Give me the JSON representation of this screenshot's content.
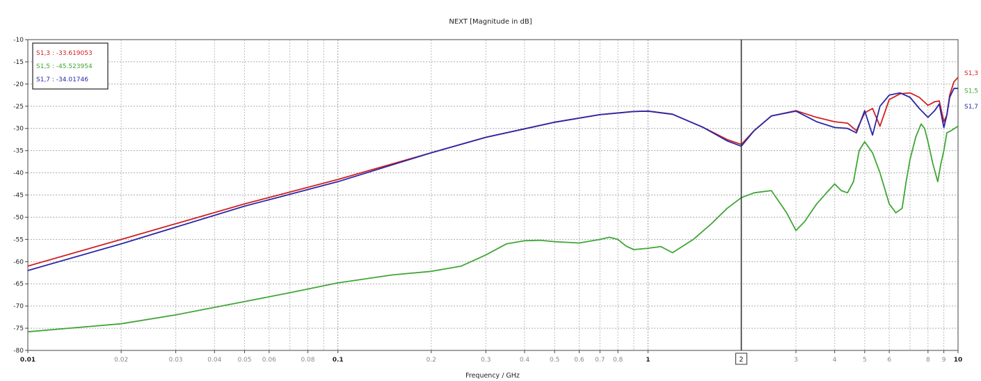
{
  "chart_data": {
    "type": "line",
    "title": "NEXT [Magnitude in dB]",
    "xlabel": "Frequency / GHz",
    "ylabel": "",
    "x_scale": "log",
    "xlim": [
      0.01,
      10
    ],
    "ylim": [
      -80,
      -10
    ],
    "grid": true,
    "legend_position": "top-left",
    "marker": {
      "x": 2,
      "label": "2"
    },
    "yticks": [
      -10,
      -15,
      -20,
      -25,
      -30,
      -35,
      -40,
      -45,
      -50,
      -55,
      -60,
      -65,
      -70,
      -75,
      -80
    ],
    "xticks": [
      {
        "value": 0.01,
        "label": "0.01",
        "major": true
      },
      {
        "value": 0.02,
        "label": "0.02",
        "major": false
      },
      {
        "value": 0.03,
        "label": "0.03",
        "major": false
      },
      {
        "value": 0.04,
        "label": "0.04",
        "major": false
      },
      {
        "value": 0.05,
        "label": "0.05",
        "major": false
      },
      {
        "value": 0.06,
        "label": "0.06",
        "major": false
      },
      {
        "value": 0.08,
        "label": "0.08",
        "major": false
      },
      {
        "value": 0.1,
        "label": "0.1",
        "major": true
      },
      {
        "value": 0.2,
        "label": "0.2",
        "major": false
      },
      {
        "value": 0.3,
        "label": "0.3",
        "major": false
      },
      {
        "value": 0.4,
        "label": "0.4",
        "major": false
      },
      {
        "value": 0.5,
        "label": "0.5",
        "major": false
      },
      {
        "value": 0.6,
        "label": "0.6",
        "major": false
      },
      {
        "value": 0.7,
        "label": "0.7",
        "major": false
      },
      {
        "value": 0.8,
        "label": "0.8",
        "major": false
      },
      {
        "value": 1,
        "label": "1",
        "major": true
      },
      {
        "value": 3,
        "label": "3",
        "major": false
      },
      {
        "value": 4,
        "label": "4",
        "major": false
      },
      {
        "value": 5,
        "label": "5",
        "major": false
      },
      {
        "value": 6,
        "label": "6",
        "major": false
      },
      {
        "value": 8,
        "label": "8",
        "major": false
      },
      {
        "value": 9,
        "label": "9",
        "major": false
      },
      {
        "value": 10,
        "label": "10",
        "major": true
      }
    ],
    "legend": [
      {
        "text": "S1,3 : -33.619053",
        "color": "#d21e1e"
      },
      {
        "text": "S1,5 : -45.523954",
        "color": "#3fa535"
      },
      {
        "text": "S1,7 : -34.01746",
        "color": "#2828a8"
      }
    ],
    "end_labels": [
      {
        "text": "S1,3",
        "color": "#d21e1e",
        "y": -17.5
      },
      {
        "text": "S1,5",
        "color": "#3fa535",
        "y": -21.5
      },
      {
        "text": "S1,7",
        "color": "#2828a8",
        "y": -25
      }
    ],
    "series": [
      {
        "name": "S1,3",
        "color": "#d21e1e",
        "x": [
          0.01,
          0.02,
          0.05,
          0.1,
          0.2,
          0.3,
          0.5,
          0.7,
          0.9,
          1.0,
          1.2,
          1.5,
          1.8,
          2.0,
          2.2,
          2.5,
          3.0,
          3.5,
          4.0,
          4.4,
          4.7,
          5.0,
          5.3,
          5.6,
          6.0,
          6.5,
          7.0,
          7.5,
          8.0,
          8.4,
          8.7,
          9.0,
          9.2,
          9.4,
          9.7,
          10.0
        ],
        "y": [
          -61,
          -55,
          -47,
          -41.5,
          -35.5,
          -32,
          -28.6,
          -26.9,
          -26.2,
          -26.1,
          -26.8,
          -29.7,
          -32.5,
          -33.6,
          -30.5,
          -27.2,
          -26,
          -27.5,
          -28.5,
          -28.8,
          -30.5,
          -26.5,
          -25.5,
          -29.5,
          -23.5,
          -22.2,
          -22,
          -23,
          -24.8,
          -24,
          -23.8,
          -28.5,
          -27,
          -22.5,
          -19.5,
          -18.5
        ]
      },
      {
        "name": "S1,5",
        "color": "#3fa535",
        "x": [
          0.01,
          0.02,
          0.03,
          0.05,
          0.07,
          0.1,
          0.15,
          0.2,
          0.25,
          0.3,
          0.35,
          0.4,
          0.45,
          0.5,
          0.6,
          0.7,
          0.75,
          0.8,
          0.85,
          0.9,
          1.0,
          1.1,
          1.2,
          1.4,
          1.6,
          1.8,
          2.0,
          2.2,
          2.5,
          2.8,
          3.0,
          3.2,
          3.5,
          3.8,
          4.0,
          4.2,
          4.4,
          4.6,
          4.8,
          5.0,
          5.3,
          5.6,
          6.0,
          6.3,
          6.6,
          6.8,
          7.0,
          7.3,
          7.6,
          7.8,
          8.0,
          8.3,
          8.6,
          8.8,
          9.0,
          9.2,
          9.5,
          10.0
        ],
        "y": [
          -75.8,
          -74,
          -72,
          -69,
          -67,
          -64.8,
          -63,
          -62.2,
          -61,
          -58.5,
          -56,
          -55.3,
          -55.2,
          -55.5,
          -55.8,
          -55,
          -54.5,
          -55,
          -56.5,
          -57.3,
          -57,
          -56.6,
          -58,
          -55,
          -51.5,
          -48,
          -45.6,
          -44.5,
          -44,
          -49,
          -53,
          -51,
          -47,
          -44.2,
          -42.5,
          -44,
          -44.5,
          -42,
          -35,
          -33,
          -35.5,
          -40,
          -47,
          -49,
          -48,
          -42,
          -37,
          -32,
          -29,
          -30,
          -33,
          -38,
          -42,
          -38,
          -35,
          -31,
          -30.5,
          -29.5
        ]
      },
      {
        "name": "S1,7",
        "color": "#2828a8",
        "x": [
          0.01,
          0.02,
          0.05,
          0.1,
          0.2,
          0.3,
          0.5,
          0.7,
          0.9,
          1.0,
          1.2,
          1.5,
          1.8,
          2.0,
          2.2,
          2.5,
          3.0,
          3.5,
          4.0,
          4.4,
          4.7,
          5.0,
          5.3,
          5.6,
          6.0,
          6.5,
          7.0,
          7.5,
          8.0,
          8.4,
          8.7,
          9.0,
          9.2,
          9.4,
          9.7,
          10.0
        ],
        "y": [
          -62,
          -56,
          -47.5,
          -42,
          -35.5,
          -32,
          -28.6,
          -26.9,
          -26.2,
          -26.1,
          -26.8,
          -29.7,
          -32.8,
          -34,
          -30.5,
          -27.2,
          -26.1,
          -28.5,
          -29.8,
          -30,
          -31,
          -26,
          -31.5,
          -25,
          -22.5,
          -22,
          -23,
          -25.5,
          -27.5,
          -26,
          -24.5,
          -29.8,
          -27,
          -23,
          -21,
          -21
        ]
      }
    ]
  }
}
